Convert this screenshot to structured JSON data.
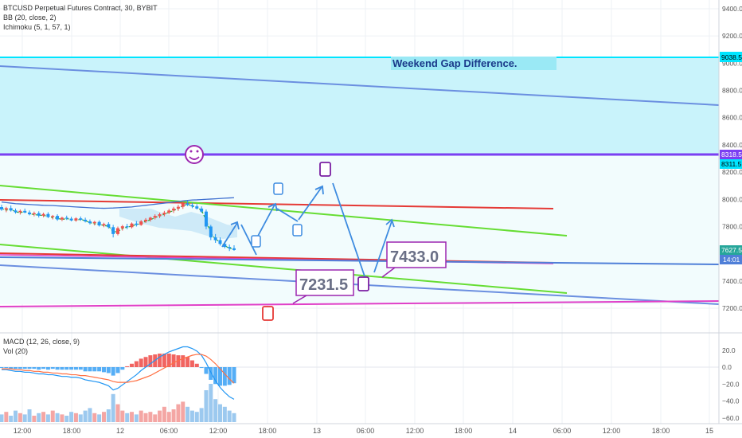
{
  "legend": {
    "symbol": "BTCUSD Perpetual Futures Contract, 30, BYBIT",
    "bb": "BB (20, close, 2)",
    "ichimoku": "Ichimoku (5, 1, 57, 1)",
    "macd": "MACD (12, 26, close, 9)",
    "vol": "Vol (20)"
  },
  "annotations": {
    "gap_text": "Weekend Gap Difference.",
    "target_low": "7231.5",
    "target_high": "7433.0",
    "smiley": "☺"
  },
  "price_badges": {
    "top": "9038.5",
    "mid1": "8318.5",
    "mid2": "8311.5",
    "last": "7627.5",
    "countdown": "14:01"
  },
  "colors": {
    "gap_fill": "#c9f3fb",
    "cyan": "#00e5ff",
    "blue_line": "#6b8fe0",
    "purple": "#7b3ff2",
    "red": "#e53935",
    "green": "#66dd33",
    "magenta": "#e040c8",
    "arrow": "#3d8be0",
    "up": "#ef5350",
    "down": "#2196f3",
    "bb": "#3f6fd0"
  },
  "chart_data": {
    "type": "line",
    "price_axis": {
      "ylim": [
        7100,
        9450
      ],
      "ticks": [
        7200,
        7400,
        7600,
        7800,
        8000,
        8200,
        8400,
        8600,
        8800,
        9000,
        9200,
        9400
      ]
    },
    "macd_axis": {
      "ticks": [
        20.0,
        0.0,
        -20.0,
        -40.0,
        -60.0
      ],
      "tick_labels": [
        "20.0",
        "0.0",
        "−20.0",
        "−40.0",
        "−60.0"
      ]
    },
    "x_ticks": [
      "12:00",
      "18:00",
      "12",
      "06:00",
      "12:00",
      "18:00",
      "13",
      "06:00",
      "12:00",
      "18:00",
      "14",
      "06:00",
      "12:00",
      "18:00",
      "15"
    ],
    "series": [
      {
        "type": "candlestick",
        "ohlc": [
          [
            7943,
            7960,
            7915,
            7925
          ],
          [
            7925,
            7945,
            7905,
            7935
          ],
          [
            7935,
            7955,
            7910,
            7918
          ],
          [
            7918,
            7932,
            7895,
            7905
          ],
          [
            7905,
            7925,
            7888,
            7915
          ],
          [
            7915,
            7932,
            7898,
            7903
          ],
          [
            7903,
            7918,
            7882,
            7890
          ],
          [
            7890,
            7910,
            7875,
            7898
          ],
          [
            7898,
            7912,
            7866,
            7880
          ],
          [
            7880,
            7902,
            7868,
            7892
          ],
          [
            7892,
            7905,
            7862,
            7870
          ],
          [
            7870,
            7885,
            7852,
            7878
          ],
          [
            7878,
            7890,
            7842,
            7852
          ],
          [
            7852,
            7872,
            7840,
            7865
          ],
          [
            7865,
            7880,
            7848,
            7858
          ],
          [
            7858,
            7872,
            7838,
            7845
          ],
          [
            7845,
            7868,
            7835,
            7860
          ],
          [
            7860,
            7874,
            7842,
            7850
          ],
          [
            7850,
            7865,
            7830,
            7838
          ],
          [
            7838,
            7852,
            7815,
            7825
          ],
          [
            7825,
            7842,
            7808,
            7834
          ],
          [
            7834,
            7845,
            7800,
            7808
          ],
          [
            7808,
            7828,
            7795,
            7818
          ],
          [
            7818,
            7832,
            7785,
            7795
          ],
          [
            7795,
            7812,
            7720,
            7745
          ],
          [
            7745,
            7800,
            7735,
            7788
          ],
          [
            7788,
            7812,
            7770,
            7802
          ],
          [
            7802,
            7820,
            7780,
            7795
          ],
          [
            7795,
            7830,
            7786,
            7822
          ],
          [
            7822,
            7840,
            7800,
            7812
          ],
          [
            7812,
            7848,
            7805,
            7838
          ],
          [
            7838,
            7862,
            7826,
            7850
          ],
          [
            7850,
            7872,
            7836,
            7865
          ],
          [
            7865,
            7890,
            7852,
            7878
          ],
          [
            7878,
            7902,
            7862,
            7890
          ],
          [
            7890,
            7915,
            7875,
            7902
          ],
          [
            7902,
            7930,
            7890,
            7918
          ],
          [
            7918,
            7945,
            7900,
            7932
          ],
          [
            7932,
            7960,
            7915,
            7945
          ],
          [
            7945,
            7985,
            7930,
            7970
          ],
          [
            7970,
            7990,
            7950,
            7958
          ],
          [
            7958,
            7975,
            7935,
            7948
          ],
          [
            7948,
            7965,
            7925,
            7932
          ],
          [
            7932,
            7948,
            7900,
            7910
          ],
          [
            7910,
            7925,
            7780,
            7800
          ],
          [
            7800,
            7812,
            7700,
            7720
          ],
          [
            7720,
            7745,
            7680,
            7700
          ],
          [
            7700,
            7720,
            7660,
            7672
          ],
          [
            7672,
            7690,
            7640,
            7650
          ],
          [
            7650,
            7668,
            7620,
            7640
          ],
          [
            7640,
            7662,
            7622,
            7627.5
          ]
        ]
      },
      {
        "type": "line",
        "label": "BB",
        "values": [
          7980,
          7976,
          7972,
          7968,
          7966,
          7964,
          7962,
          7960,
          7958,
          7956,
          7955,
          7954,
          7952,
          7950,
          7948,
          7946,
          7944,
          7942,
          7940,
          7938,
          7936,
          7935,
          7934,
          7935,
          7936,
          7938,
          7940,
          7942,
          7944,
          7948,
          7952,
          7956,
          7960,
          7964,
          7968,
          7972,
          7976,
          7980,
          7984,
          7988,
          7992,
          7995,
          7996,
          7998,
          8000,
          8002,
          8004,
          8006,
          8008,
          8010,
          8012
        ]
      },
      {
        "type": "line",
        "label": "MACD",
        "values": [
          -3,
          -3,
          -4,
          -5,
          -5,
          -6,
          -6,
          -7,
          -8,
          -8,
          -9,
          -9,
          -10,
          -11,
          -11,
          -12,
          -12,
          -13,
          -15,
          -16,
          -17,
          -18,
          -20,
          -22,
          -27,
          -25,
          -21,
          -17,
          -13,
          -9,
          -4,
          0,
          4,
          8,
          12,
          15,
          18,
          20,
          22,
          24,
          24,
          22,
          19,
          14,
          5,
          -6,
          -16,
          -24,
          -30,
          -35,
          -38
        ]
      },
      {
        "type": "line",
        "label": "Signal",
        "values": [
          -2,
          -2,
          -2,
          -3,
          -3,
          -4,
          -4,
          -5,
          -5,
          -6,
          -6,
          -7,
          -7,
          -8,
          -8,
          -9,
          -9,
          -10,
          -10,
          -11,
          -12,
          -13,
          -14,
          -15,
          -17,
          -18,
          -18,
          -18,
          -17,
          -16,
          -14,
          -12,
          -10,
          -7,
          -4,
          -1,
          2,
          5,
          8,
          10,
          12,
          14,
          15,
          15,
          13,
          9,
          4,
          -2,
          -8,
          -14,
          -19
        ]
      },
      {
        "type": "bar",
        "label": "Vol",
        "values": [
          6,
          8,
          5,
          9,
          7,
          6,
          10,
          5,
          7,
          8,
          6,
          9,
          7,
          6,
          5,
          8,
          7,
          6,
          9,
          11,
          7,
          6,
          8,
          10,
          22,
          14,
          9,
          7,
          8,
          6,
          9,
          7,
          8,
          6,
          9,
          12,
          8,
          10,
          14,
          16,
          12,
          9,
          8,
          11,
          25,
          30,
          18,
          14,
          12,
          9,
          7
        ]
      }
    ],
    "levels": [
      7200,
      7433.0,
      7231.5,
      8311.5,
      8318.5,
      9038.5
    ]
  }
}
